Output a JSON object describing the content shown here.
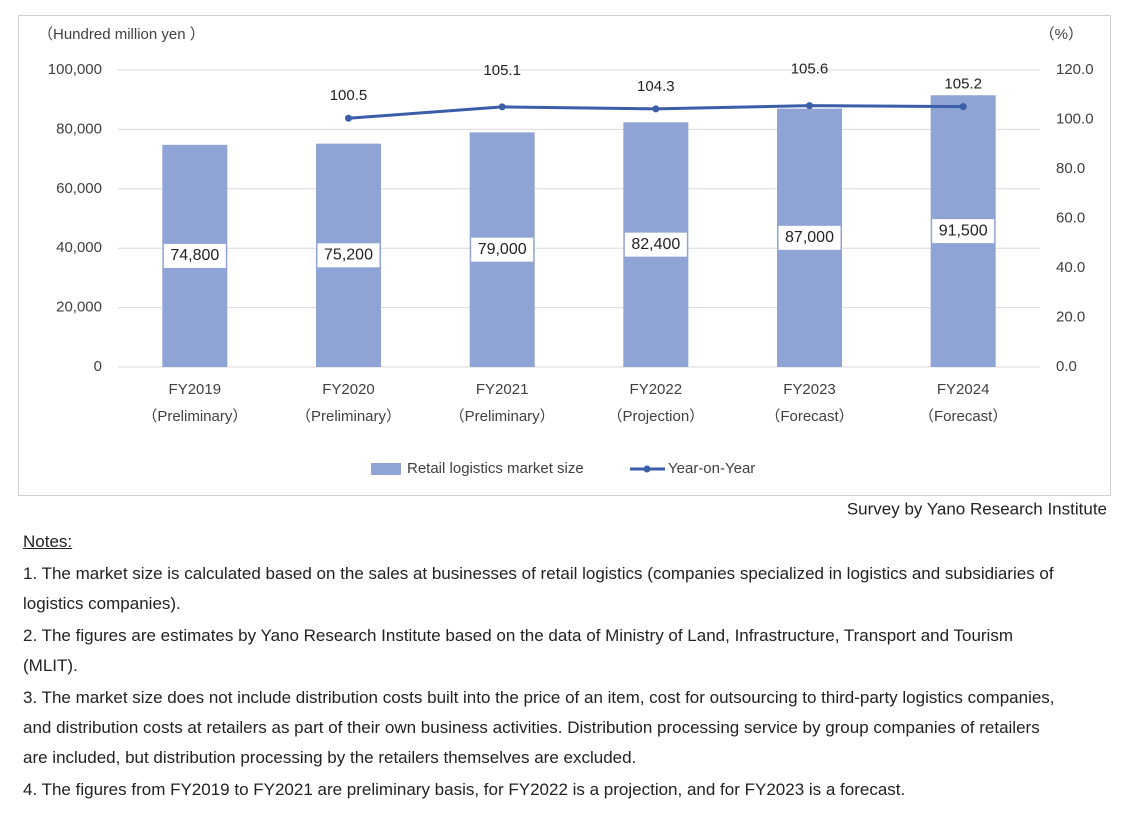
{
  "chart_data": {
    "type": "bar-line",
    "y_axis_label": "（Hundred million yen ）",
    "y2_axis_label": "（%）",
    "categories": [
      [
        "FY2019",
        "（Preliminary）"
      ],
      [
        "FY2020",
        "（Preliminary）"
      ],
      [
        "FY2021",
        "（Preliminary）"
      ],
      [
        "FY2022",
        "（Projection）"
      ],
      [
        "FY2023",
        "（Forecast）"
      ],
      [
        "FY2024",
        "（Forecast）"
      ]
    ],
    "series": [
      {
        "name": "Retail logistics market size",
        "type": "bar",
        "color": "#8fa4d4",
        "values": [
          74800,
          75200,
          79000,
          82400,
          87000,
          91500
        ],
        "value_labels": [
          "74,800",
          "75,200",
          "79,000",
          "82,400",
          "87,000",
          "91,500"
        ]
      },
      {
        "name": "Year-on-Year",
        "type": "line",
        "axis": "y2",
        "color": "#3a5ea8",
        "values": [
          null,
          100.5,
          105.1,
          104.3,
          105.6,
          105.2
        ]
      }
    ],
    "ylim": [
      0,
      100000
    ],
    "yticks": [
      0,
      {
        "value": 20000,
        "label": "20,000"
      },
      {
        "value": 40000,
        "label": "40,000"
      },
      {
        "value": 60000,
        "label": "60,000"
      },
      {
        "value": 80000,
        "label": "80,000"
      },
      {
        "value": 100000,
        "label": "100,000"
      }
    ],
    "y2lim": [
      0,
      120
    ],
    "y2ticks": [
      {
        "value": 0,
        "label": "0.0"
      },
      {
        "value": 20,
        "label": "20.0"
      },
      {
        "value": 40,
        "label": "40.0"
      },
      {
        "value": 60,
        "label": "60.0"
      },
      {
        "value": 80,
        "label": "80.0"
      },
      {
        "value": 100,
        "label": "100.0"
      },
      {
        "value": 120,
        "label": "120.0"
      }
    ],
    "grid": true,
    "legend": "bottom"
  },
  "source": "Survey by Yano Research Institute",
  "notes": {
    "heading": "Notes:",
    "items": [
      "1. The market size is calculated based on the sales at businesses of retail logistics (companies specialized in logistics and subsidiaries of logistics companies).",
      "2. The figures are estimates by Yano Research Institute based on the data of Ministry of Land, Infrastructure, Transport and Tourism (MLIT).",
      "3. The market size does not include distribution costs built into the price of an item, cost for outsourcing to third-party logistics companies, and distribution costs at retailers as part of their own business activities. Distribution processing service by group companies of retailers are included, but distribution processing by the retailers themselves are excluded.",
      "4. The figures from FY2019 to FY2021 are preliminary basis, for FY2022 is a projection, and for FY2023 is a forecast."
    ]
  }
}
